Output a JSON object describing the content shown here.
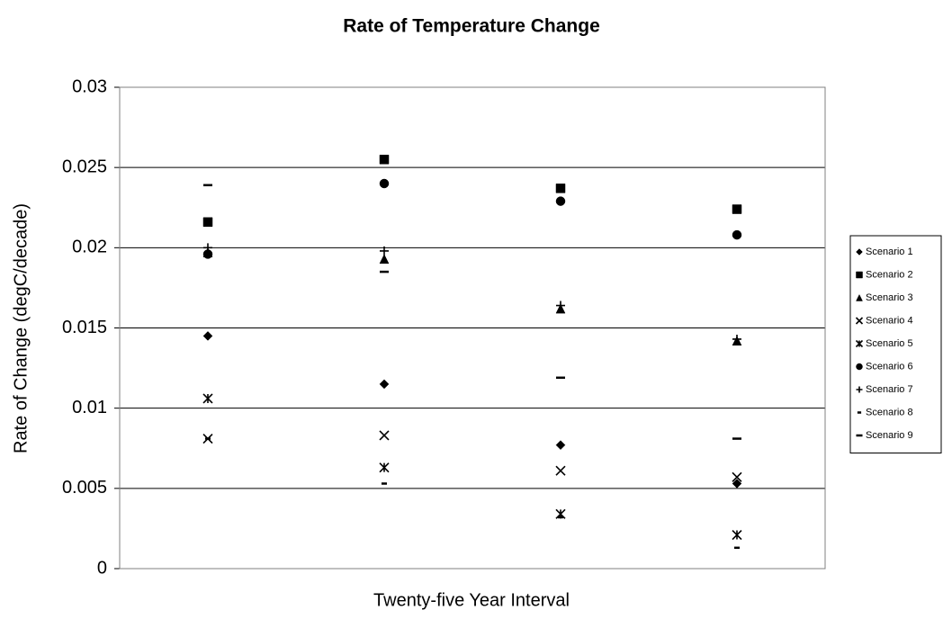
{
  "chart_data": {
    "type": "scatter",
    "title": "Rate of Temperature Change",
    "x_label": "Twenty-five Year Interval",
    "y_label": "Rate of Change (degC/decade)",
    "categories": [
      null,
      null,
      null,
      null
    ],
    "ylim": [
      0,
      0.03
    ],
    "yticks": [
      0,
      0.005,
      0.01,
      0.015,
      0.02,
      0.025,
      0.03
    ],
    "grid": true,
    "legend": "right",
    "series": [
      {
        "name": "Scenario 1",
        "color": "#000000",
        "marker": "diamond",
        "values": [
          0.0145,
          0.0115,
          0.0077,
          0.0053
        ]
      },
      {
        "name": "Scenario 2",
        "color": "#000000",
        "marker": "square",
        "values": [
          0.0216,
          0.0255,
          0.0237,
          0.0224
        ]
      },
      {
        "name": "Scenario 3",
        "color": "#000000",
        "marker": "triangle",
        "values": [
          0.0197,
          0.0193,
          0.0162,
          0.0142
        ]
      },
      {
        "name": "Scenario 4",
        "color": "#000000",
        "marker": "x",
        "values": [
          0.0081,
          0.0083,
          0.0061,
          0.0057
        ]
      },
      {
        "name": "Scenario 5",
        "color": "#000000",
        "marker": "asterisk",
        "values": [
          0.0106,
          0.0063,
          0.0034,
          0.0021
        ]
      },
      {
        "name": "Scenario 6",
        "color": "#000000",
        "marker": "circle",
        "values": [
          0.0196,
          0.024,
          0.0229,
          0.0208
        ]
      },
      {
        "name": "Scenario 7",
        "color": "#000000",
        "marker": "plus",
        "values": [
          0.02,
          0.0198,
          0.0164,
          0.0143
        ]
      },
      {
        "name": "Scenario 8",
        "color": "#000000",
        "marker": "dash",
        "values": [
          0.0081,
          0.0053,
          0.0032,
          0.0013
        ]
      },
      {
        "name": "Scenario 9",
        "color": "#000000",
        "marker": "longdash",
        "values": [
          0.0239,
          0.0185,
          0.0119,
          0.0081
        ]
      }
    ]
  }
}
